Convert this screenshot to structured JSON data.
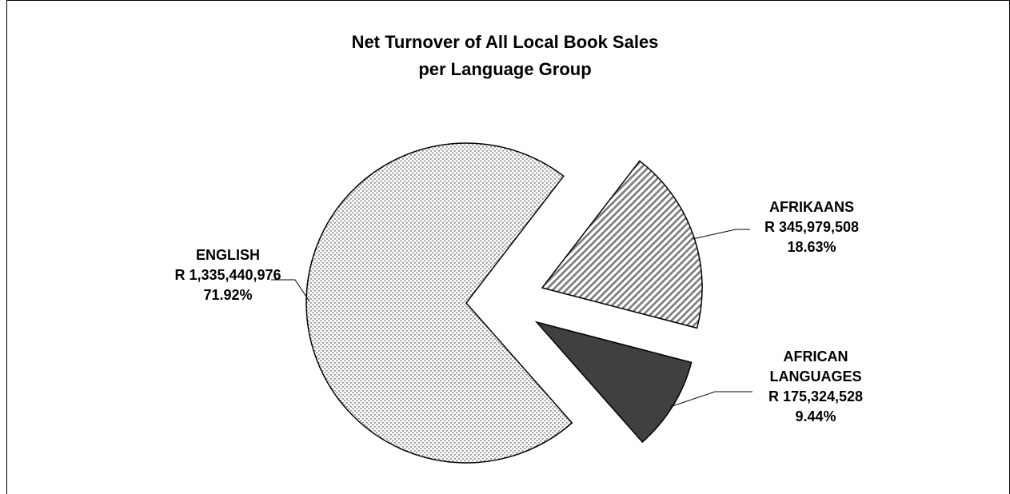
{
  "chart_data": {
    "type": "pie",
    "title": [
      "Net Turnover of All Local Book Sales",
      "per Language Group"
    ],
    "slices": [
      {
        "name": "ENGLISH",
        "value_label": "R 1,335,440,976",
        "value": 1335440976,
        "percent_label": "71.92%",
        "percent": 71.92,
        "pattern": "dots"
      },
      {
        "name": "AFRIKAANS",
        "value_label": "R 345,979,508",
        "value": 345979508,
        "percent_label": "18.63%",
        "percent": 18.63,
        "pattern": "diagonal-stripes"
      },
      {
        "name": "AFRICAN LANGUAGES",
        "name_lines": [
          "AFRICAN",
          "LANGUAGES"
        ],
        "value_label": "R 175,324,528",
        "value": 175324528,
        "percent_label": "9.44%",
        "percent": 9.44,
        "pattern": "solid-dark"
      }
    ],
    "colors": {
      "dots": "#bfbfbf",
      "stripes": "#808080",
      "dark": "#404040"
    }
  }
}
